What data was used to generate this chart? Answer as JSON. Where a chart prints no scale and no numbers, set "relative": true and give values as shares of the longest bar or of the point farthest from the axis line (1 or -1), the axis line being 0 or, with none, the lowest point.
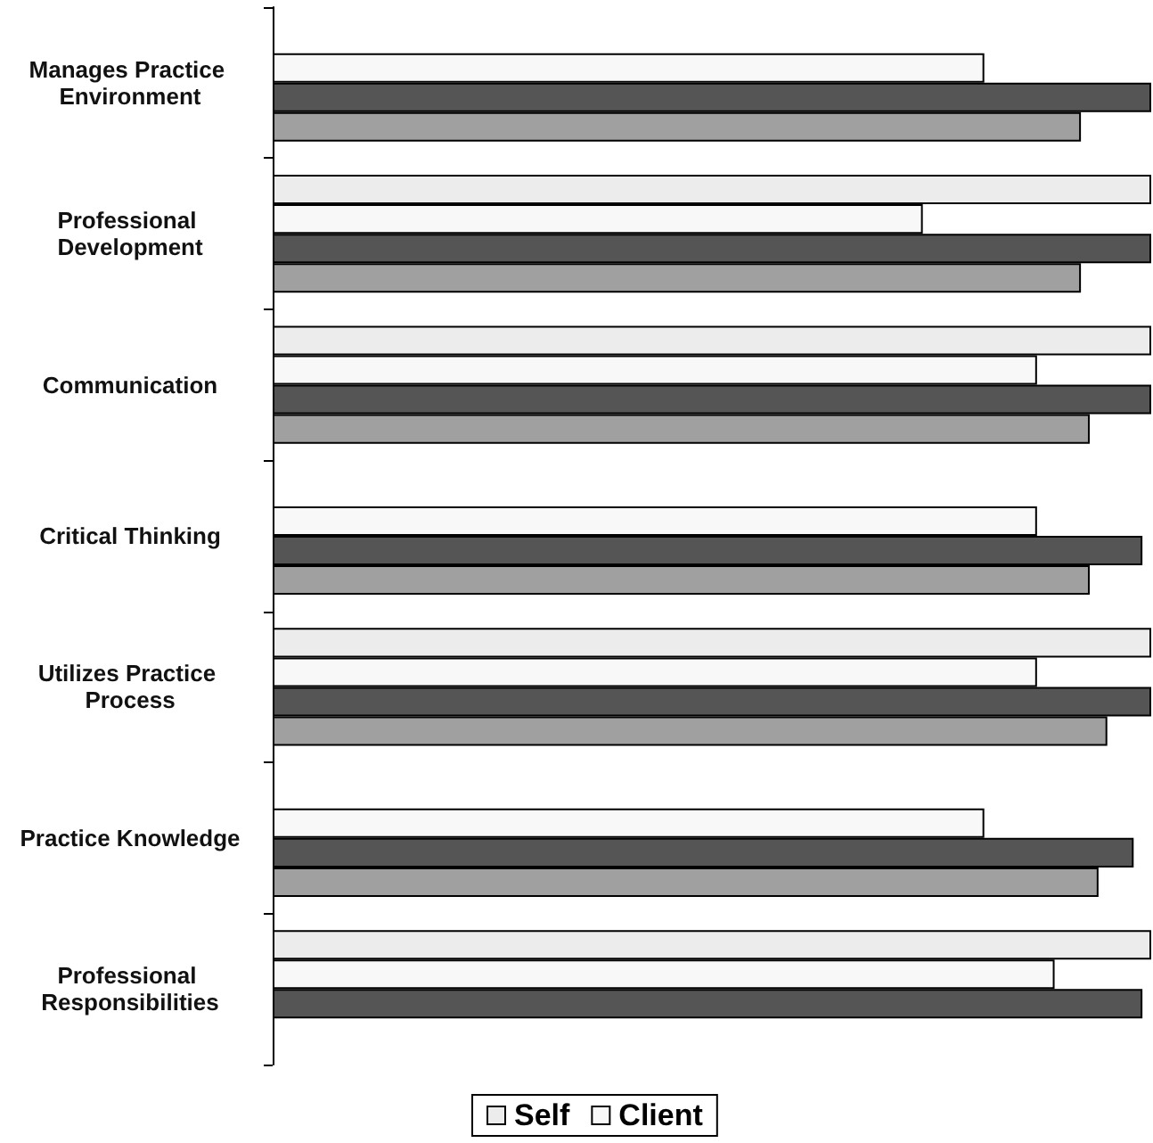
{
  "chart_data": {
    "type": "bar",
    "orientation": "horizontal",
    "relative": true,
    "legend": "bottom",
    "categories": [
      "Manages Practice Environment",
      "Professional Development",
      "Communication",
      "Critical Thinking",
      "Utilizes Practice Process",
      "Practice Knowledge",
      "Professional Responsibilities"
    ],
    "series": [
      {
        "name": "Self",
        "color": "#ececec",
        "values": [
          null,
          1,
          1,
          null,
          1,
          null,
          1
        ]
      },
      {
        "name": "Client",
        "color": "#f8f8f8",
        "values": [
          0.81,
          0.74,
          0.87,
          0.87,
          0.87,
          0.81,
          0.89
        ]
      },
      {
        "color": "#555555",
        "values": [
          1,
          1,
          1,
          0.99,
          1,
          0.98,
          0.99
        ]
      },
      {
        "color": "#a0a0a0",
        "values": [
          0.92,
          0.92,
          0.93,
          0.93,
          0.95,
          0.94,
          null
        ]
      }
    ]
  }
}
